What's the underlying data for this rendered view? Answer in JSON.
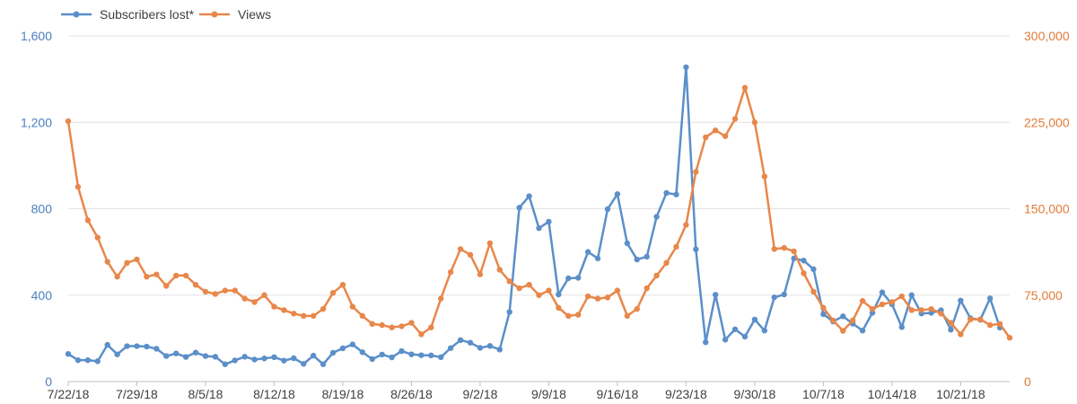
{
  "chart_data": {
    "type": "line",
    "x": [
      "7/22/18",
      "7/23/18",
      "7/24/18",
      "7/25/18",
      "7/26/18",
      "7/27/18",
      "7/28/18",
      "7/29/18",
      "7/30/18",
      "7/31/18",
      "8/1/18",
      "8/2/18",
      "8/3/18",
      "8/4/18",
      "8/5/18",
      "8/6/18",
      "8/7/18",
      "8/8/18",
      "8/9/18",
      "8/10/18",
      "8/11/18",
      "8/12/18",
      "8/13/18",
      "8/14/18",
      "8/15/18",
      "8/16/18",
      "8/17/18",
      "8/18/18",
      "8/19/18",
      "8/20/18",
      "8/21/18",
      "8/22/18",
      "8/23/18",
      "8/24/18",
      "8/25/18",
      "8/26/18",
      "8/27/18",
      "8/28/18",
      "8/29/18",
      "8/30/18",
      "8/31/18",
      "9/1/18",
      "9/2/18",
      "9/3/18",
      "9/4/18",
      "9/5/18",
      "9/6/18",
      "9/7/18",
      "9/8/18",
      "9/9/18",
      "9/10/18",
      "9/11/18",
      "9/12/18",
      "9/13/18",
      "9/14/18",
      "9/15/18",
      "9/16/18",
      "9/17/18",
      "9/18/18",
      "9/19/18",
      "9/20/18",
      "9/21/18",
      "9/22/18",
      "9/23/18",
      "9/24/18",
      "9/25/18",
      "9/26/18",
      "9/27/18",
      "9/28/18",
      "9/29/18",
      "9/30/18",
      "10/1/18",
      "10/2/18",
      "10/3/18",
      "10/4/18",
      "10/5/18",
      "10/6/18",
      "10/7/18",
      "10/8/18",
      "10/9/18",
      "10/10/18",
      "10/11/18",
      "10/12/18",
      "10/13/18",
      "10/14/18",
      "10/15/18",
      "10/16/18",
      "10/17/18",
      "10/18/18",
      "10/19/18",
      "10/20/18",
      "10/21/18",
      "10/22/18",
      "10/23/18",
      "10/24/18",
      "10/25/18",
      "10/26/18"
    ],
    "x_tick_labels": [
      "7/22/18",
      "7/29/18",
      "8/5/18",
      "8/12/18",
      "8/19/18",
      "8/26/18",
      "9/2/18",
      "9/9/18",
      "9/16/18",
      "9/23/18",
      "9/30/18",
      "10/7/18",
      "10/14/18",
      "10/21/18"
    ],
    "series": [
      {
        "name": "Subscribers lost*",
        "axis": "left",
        "color": "#5b8fc9",
        "values": [
          128,
          99,
          99,
          94,
          170,
          126,
          164,
          164,
          162,
          152,
          118,
          130,
          114,
          134,
          118,
          115,
          80,
          98,
          115,
          102,
          107,
          113,
          97,
          108,
          82,
          120,
          80,
          133,
          154,
          172,
          136,
          104,
          125,
          112,
          141,
          126,
          122,
          121,
          113,
          155,
          192,
          180,
          156,
          165,
          148,
          322,
          805,
          858,
          710,
          740,
          403,
          478,
          480,
          600,
          570,
          798,
          868,
          640,
          565,
          578,
          763,
          873,
          866,
          1455,
          612,
          182,
          402,
          194,
          242,
          208,
          287,
          236,
          390,
          403,
          570,
          560,
          520,
          312,
          278,
          302,
          268,
          236,
          318,
          413,
          358,
          252,
          400,
          315,
          318,
          330,
          240,
          375,
          293,
          286,
          385,
          250,
          null
        ]
      },
      {
        "name": "Views",
        "axis": "right",
        "color": "#e8874a",
        "values": [
          226000,
          169000,
          140000,
          125000,
          104000,
          91000,
          103000,
          106000,
          91000,
          93000,
          83000,
          92000,
          92000,
          84000,
          78000,
          76000,
          79000,
          79000,
          72000,
          69000,
          75000,
          65000,
          62000,
          59000,
          57000,
          57000,
          63000,
          77000,
          84000,
          65000,
          57000,
          50000,
          49000,
          47000,
          48000,
          51000,
          41000,
          47000,
          72000,
          95000,
          115000,
          110000,
          93000,
          120000,
          97000,
          87000,
          81000,
          84000,
          75000,
          79000,
          64000,
          57000,
          58000,
          74000,
          72000,
          73000,
          79000,
          57000,
          63000,
          81000,
          92000,
          103000,
          117000,
          136000,
          182000,
          212000,
          218000,
          213000,
          228000,
          255000,
          225000,
          178000,
          115000,
          116000,
          113000,
          94000,
          78000,
          64000,
          53000,
          44000,
          53000,
          70000,
          63000,
          67000,
          69000,
          74000,
          62000,
          62000,
          63000,
          59000,
          51000,
          41000,
          54000,
          54000,
          49000,
          50000,
          38000
        ]
      }
    ],
    "y_left": {
      "range": [
        0,
        1600
      ],
      "ticks": [
        "0",
        "400",
        "800",
        "1,200",
        "1,600"
      ],
      "color": "#4a7fbf"
    },
    "y_right": {
      "range": [
        0,
        300000
      ],
      "ticks": [
        "0",
        "75,000",
        "150,000",
        "225,000",
        "300,000"
      ],
      "color": "#e07b39"
    },
    "grid": true,
    "legend_position": "top-left"
  }
}
